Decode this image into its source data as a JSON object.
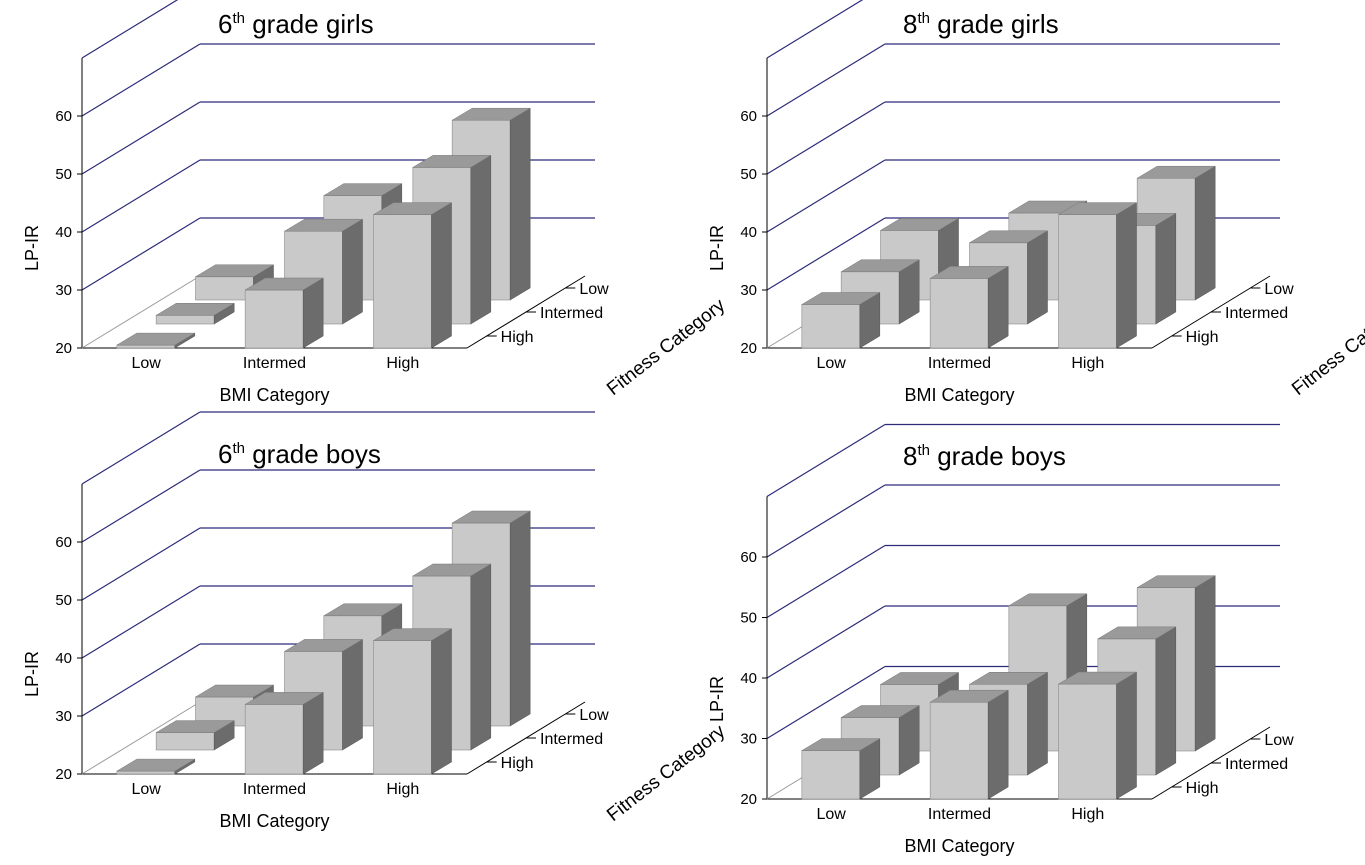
{
  "chart_data": [
    {
      "type": "bar",
      "title": "6th grade girls",
      "title_parts": {
        "number": "6",
        "suffix": "th",
        "rest": " grade girls"
      },
      "xlabel": "BMI Category",
      "ylabel": "LP-IR",
      "zlabel": "Fitness Category",
      "categories": [
        "Low",
        "Intermed",
        "High"
      ],
      "depth_categories": [
        "High",
        "Intermed",
        "Low"
      ],
      "yticks": [
        "20",
        "30",
        "40",
        "50",
        "60"
      ],
      "ylim": [
        20,
        60
      ],
      "series": [
        {
          "name": "High",
          "values": [
            20.5,
            30,
            43
          ]
        },
        {
          "name": "Intermed",
          "values": [
            21.5,
            36,
            47
          ]
        },
        {
          "name": "Low",
          "values": [
            24,
            38,
            51
          ]
        }
      ]
    },
    {
      "type": "bar",
      "title": "8th grade girls",
      "title_parts": {
        "number": "8",
        "suffix": "th",
        "rest": " grade girls"
      },
      "xlabel": "BMI Category",
      "ylabel": "LP-IR",
      "zlabel": "Fitness Category",
      "categories": [
        "Low",
        "Intermed",
        "High"
      ],
      "depth_categories": [
        "High",
        "Intermed",
        "Low"
      ],
      "yticks": [
        "20",
        "30",
        "40",
        "50",
        "60"
      ],
      "ylim": [
        20,
        60
      ],
      "series": [
        {
          "name": "High",
          "values": [
            27.5,
            32,
            43
          ]
        },
        {
          "name": "Intermed",
          "values": [
            29,
            34,
            37
          ]
        },
        {
          "name": "Low",
          "values": [
            32,
            35,
            41
          ]
        }
      ]
    },
    {
      "type": "bar",
      "title": "6th grade boys",
      "title_parts": {
        "number": "6",
        "suffix": "th",
        "rest": " grade boys"
      },
      "xlabel": "BMI Category",
      "ylabel": "LP-IR",
      "zlabel": "Fitness Category",
      "categories": [
        "Low",
        "Intermed",
        "High"
      ],
      "depth_categories": [
        "High",
        "Intermed",
        "Low"
      ],
      "yticks": [
        "20",
        "30",
        "40",
        "50",
        "60"
      ],
      "ylim": [
        20,
        60
      ],
      "series": [
        {
          "name": "High",
          "values": [
            20.5,
            32,
            43
          ]
        },
        {
          "name": "Intermed",
          "values": [
            23,
            37,
            50
          ]
        },
        {
          "name": "Low",
          "values": [
            25,
            39,
            55
          ]
        }
      ]
    },
    {
      "type": "bar",
      "title": "8th grade boys",
      "title_parts": {
        "number": "8",
        "suffix": "th",
        "rest": " grade boys"
      },
      "xlabel": "BMI Category",
      "ylabel": "LP-IR",
      "zlabel": "",
      "categories": [
        "Low",
        "Intermed",
        "High"
      ],
      "depth_categories": [
        "High",
        "Intermed",
        "Low"
      ],
      "yticks": [
        "20",
        "30",
        "40",
        "50",
        "60"
      ],
      "ylim": [
        20,
        60
      ],
      "series": [
        {
          "name": "High",
          "values": [
            28,
            36,
            39
          ]
        },
        {
          "name": "Intermed",
          "values": [
            29.5,
            35,
            42.5
          ]
        },
        {
          "name": "Low",
          "values": [
            31,
            44,
            47
          ]
        }
      ]
    }
  ],
  "colors": {
    "bar_front": "#c9c9c9",
    "bar_top": "#9a9a9a",
    "bar_side": "#6c6c6c",
    "gridline": "#2b2b7a",
    "axis": "#000000",
    "floor_line": "#999999"
  }
}
